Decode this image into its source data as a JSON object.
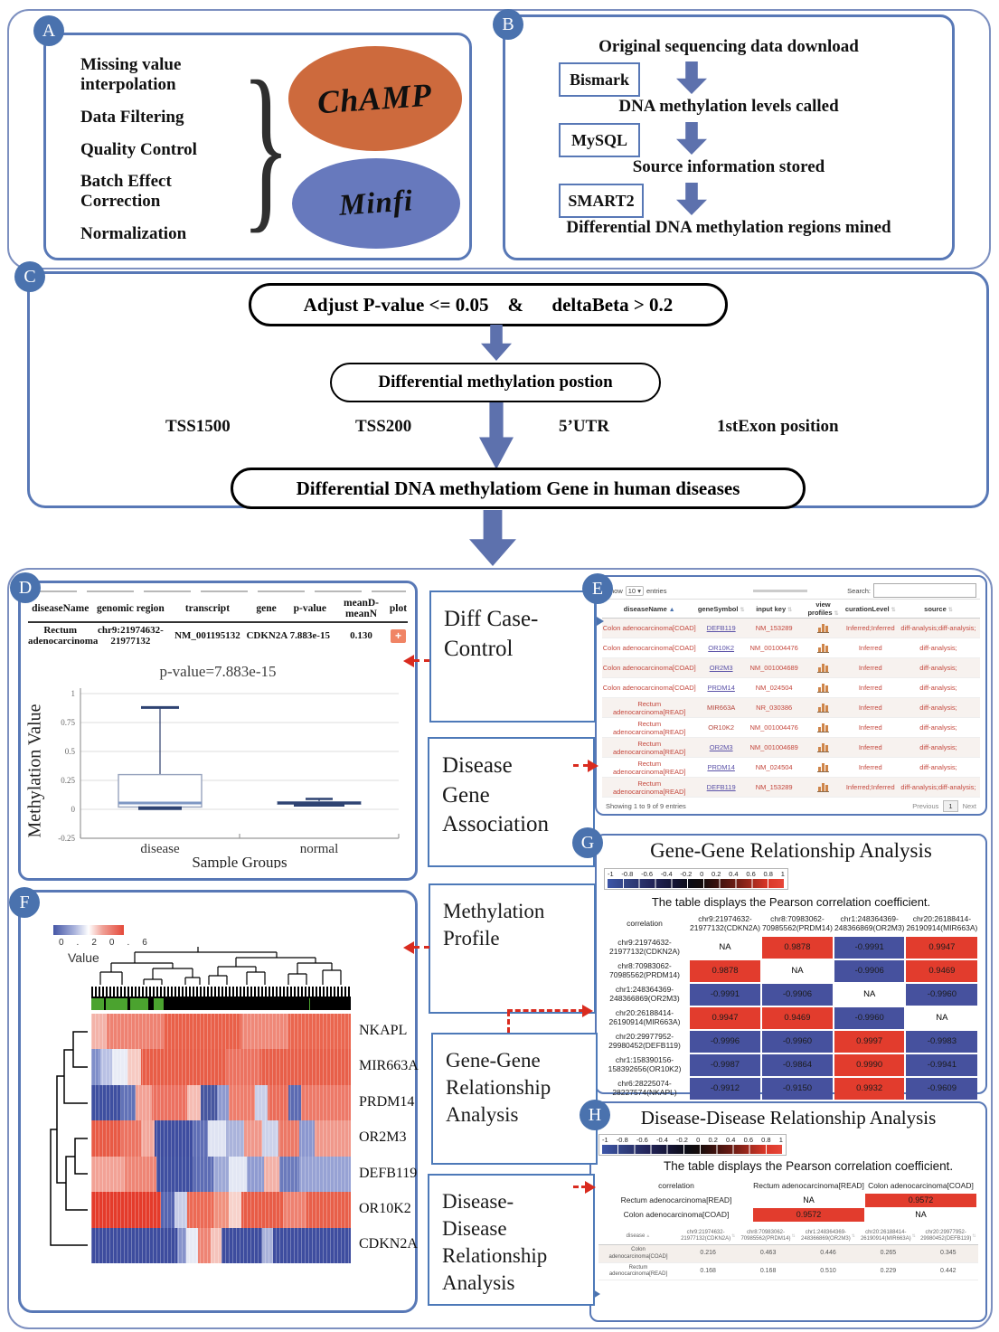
{
  "colors": {
    "panel_border": "#5878b6",
    "outer_border": "#7d90c0",
    "badge": "#4a72ae",
    "block_arrow": "#5d71ad",
    "champ": "#cd6a3d",
    "minfi": "#6779bd",
    "red_arrow": "#d92b1f",
    "corr_pos": "#e23c2d",
    "corr_neg": "#46519e",
    "table_red_text": "#c4473c",
    "link": "#5b52a8",
    "plot_button": "#f08465",
    "annotation_green": "#4ba32f"
  },
  "panelA": {
    "badge": "A",
    "items": [
      "Missing value\ninterpolation",
      "Data Filtering",
      "Quality Control",
      "Batch Effect\nCorrection",
      "Normalization"
    ],
    "tools": [
      "ChAMP",
      "Minfi"
    ]
  },
  "panelB": {
    "badge": "B",
    "step1": "Original sequencing data download",
    "tool1": "Bismark",
    "step2": "DNA methylation levels called",
    "tool2": "MySQL",
    "step3": "Source information stored",
    "tool3": "SMART2",
    "step4": "Differential DNA methylation regions mined"
  },
  "panelC": {
    "badge": "C",
    "filter": "Adjust P-value <= 0.05    &      deltaBeta > 0.2",
    "dmp": "Differential methylation postion",
    "positions": [
      "TSS1500",
      "TSS200",
      "5’UTR",
      "1stExon position"
    ],
    "result": "Differential DNA methylatiom Gene in human diseases"
  },
  "middle": {
    "boxes": [
      "Diff Case-\nControl",
      "Disease\nGene\nAssociation",
      "Methylation\nProfile",
      "Gene-Gene\nRelationship\nAnalysis",
      "Disease-\nDisease\nRelationship\nAnalysis"
    ]
  },
  "panelD": {
    "badge": "D",
    "table": {
      "headers": [
        "diseaseName",
        "genomic region",
        "transcript",
        "gene",
        "p-value",
        "meanD-meanN",
        "plot"
      ],
      "row": {
        "diseaseName": "Rectum\nadenocarcinoma",
        "genomic_region": "chr9:21974632-\n21977132",
        "transcript": "NM_001195132",
        "gene": "CDKN2A",
        "p_value": "7.883e-15",
        "meanD_meanN": "0.130",
        "plot": "+"
      }
    },
    "chart": {
      "type": "box",
      "title": "p-value=7.883e-15",
      "ylabel": "Methylation Value",
      "xlabel": "Sample Groups",
      "ylim": [
        -0.25,
        1
      ],
      "yticks": [
        1,
        0.75,
        0.5,
        0.25,
        0,
        -0.25
      ],
      "groups": [
        {
          "label": "disease",
          "low": 0.01,
          "q1": 0.02,
          "median": 0.055,
          "q3": 0.3,
          "high": 0.88
        },
        {
          "label": "normal",
          "low": 0.035,
          "q1": 0.045,
          "median": 0.055,
          "q3": 0.065,
          "high": 0.09
        }
      ]
    }
  },
  "panelE": {
    "badge": "E",
    "show_label": "Show",
    "entries_value": "10",
    "entries_suffix": "entries",
    "search_label": "Search:",
    "headers": [
      "diseaseName",
      "geneSymbol",
      "input key",
      "view profiles",
      "curationLevel",
      "source"
    ],
    "rows": [
      {
        "disease": "Colon adenocarcinoma[COAD]",
        "gene": "DEFB119",
        "link": true,
        "key": "NM_153289",
        "curation": "Inferred;Inferred",
        "source": "diff-analysis;diff-analysis;"
      },
      {
        "disease": "Colon adenocarcinoma[COAD]",
        "gene": "OR10K2",
        "link": true,
        "key": "NM_001004476",
        "curation": "Inferred",
        "source": "diff-analysis;"
      },
      {
        "disease": "Colon adenocarcinoma[COAD]",
        "gene": "OR2M3",
        "link": true,
        "key": "NM_001004689",
        "curation": "Inferred",
        "source": "diff-analysis;"
      },
      {
        "disease": "Colon adenocarcinoma[COAD]",
        "gene": "PRDM14",
        "link": true,
        "key": "NM_024504",
        "curation": "Inferred",
        "source": "diff-analysis;"
      },
      {
        "disease": "Rectum adenocarcinoma[READ]",
        "gene": "MIR663A",
        "link": false,
        "key": "NR_030386",
        "curation": "Inferred",
        "source": "diff-analysis;"
      },
      {
        "disease": "Rectum adenocarcinoma[READ]",
        "gene": "OR10K2",
        "link": false,
        "key": "NM_001004476",
        "curation": "Inferred",
        "source": "diff-analysis;"
      },
      {
        "disease": "Rectum adenocarcinoma[READ]",
        "gene": "OR2M3",
        "link": true,
        "key": "NM_001004689",
        "curation": "Inferred",
        "source": "diff-analysis;"
      },
      {
        "disease": "Rectum adenocarcinoma[READ]",
        "gene": "PRDM14",
        "link": true,
        "key": "NM_024504",
        "curation": "Inferred",
        "source": "diff-analysis;"
      },
      {
        "disease": "Rectum adenocarcinoma[READ]",
        "gene": "DEFB119",
        "link": true,
        "key": "NM_153289",
        "curation": "Inferred;Inferred",
        "source": "diff-analysis;diff-analysis;"
      }
    ],
    "footer": "Showing 1 to 9 of 9 entries",
    "prev": "Previous",
    "page": "1",
    "next": "Next"
  },
  "panelG": {
    "badge": "G",
    "title": "Gene-Gene Relationship Analysis",
    "scale_ticks": [
      "-1",
      "-0.8",
      "-0.6",
      "-0.4",
      "-0.2",
      "0",
      "0.2",
      "0.4",
      "0.6",
      "0.8",
      "1"
    ],
    "subtitle": "The table displays the Pearson correlation coefficient.",
    "corr_label": "correlation",
    "cols": [
      "chr9:21974632-\n21977132(CDKN2A)",
      "chr8:70983062-\n70985562(PRDM14)",
      "chr1:248364369-\n248366869(OR2M3)",
      "chr20:26188414-\n26190914(MIR663A)"
    ],
    "rows": [
      {
        "label": "chr9:21974632-\n21977132(CDKN2A)",
        "values": [
          "NA",
          "0.9878",
          "-0.9991",
          "0.9947"
        ]
      },
      {
        "label": "chr8:70983062-\n70985562(PRDM14)",
        "values": [
          "0.9878",
          "NA",
          "-0.9906",
          "0.9469"
        ]
      },
      {
        "label": "chr1:248364369-\n248366869(OR2M3)",
        "values": [
          "-0.9991",
          "-0.9906",
          "NA",
          "-0.9960"
        ]
      },
      {
        "label": "chr20:26188414-\n26190914(MIR663A)",
        "values": [
          "0.9947",
          "0.9469",
          "-0.9960",
          "NA"
        ]
      },
      {
        "label": "chr20:29977952-\n29980452(DEFB119)",
        "values": [
          "-0.9996",
          "-0.9960",
          "0.9997",
          "-0.9983"
        ]
      },
      {
        "label": "chr1:158390156-\n158392656(OR10K2)",
        "values": [
          "-0.9987",
          "-0.9864",
          "0.9990",
          "-0.9941"
        ]
      },
      {
        "label": "chr6:28225074-\n28227574(NKAPL)",
        "values": [
          "-0.9912",
          "-0.9150",
          "0.9932",
          "-0.9609"
        ]
      }
    ]
  },
  "panelH": {
    "badge": "H",
    "title": "Disease-Disease Relationship Analysis",
    "scale_ticks": [
      "-1",
      "-0.8",
      "-0.6",
      "-0.4",
      "-0.2",
      "0",
      "0.2",
      "0.4",
      "0.6",
      "0.8",
      "1"
    ],
    "subtitle": "The table displays the Pearson correlation coefficient.",
    "corr_label": "correlation",
    "cols": [
      "Rectum adenocarcinoma[READ]",
      "Colon adenocarcinoma[COAD]"
    ],
    "rows": [
      {
        "label": "Rectum adenocarcinoma[READ]",
        "values": [
          "NA",
          "0.9572"
        ]
      },
      {
        "label": "Colon adenocarcinoma[COAD]",
        "values": [
          "0.9572",
          "NA"
        ]
      }
    ],
    "gene_table": {
      "disease_col": "disease",
      "cols": [
        "chr9:21974632-\n21977132(CDKN2A)",
        "chr8:70983062-\n70985562(PRDM14)",
        "chr1:248364369-\n248366869(OR2M3)",
        "chr20:26188414-\n26190914(MIR663A)",
        "chr20:29977952-\n29980452(DEFB119)"
      ],
      "rows": [
        {
          "label": "Colon\nadenocarcinoma[COAD]",
          "values": [
            "0.216",
            "0.463",
            "0.446",
            "0.265",
            "0.345"
          ]
        },
        {
          "label": "Rectum\nadenocarcinoma[READ]",
          "values": [
            "0.168",
            "0.168",
            "0.510",
            "0.229",
            "0.442"
          ]
        }
      ]
    }
  },
  "panelF": {
    "badge": "F",
    "legend": {
      "ticks": [
        "0.2",
        "0.6"
      ],
      "label": "Value"
    },
    "genes": [
      "NKAPL",
      "MIR663A",
      "PRDM14",
      "OR2M3",
      "DEFB119",
      "OR10K2",
      "CDKN2A"
    ],
    "heatmap": {
      "annotation": [
        [
          0.048,
          "#4ba32f"
        ],
        [
          0.008,
          "#000000"
        ],
        [
          0.083,
          "#4ba32f"
        ],
        [
          0.012,
          "#000000"
        ],
        [
          0.07,
          "#4ba32f"
        ],
        [
          0.018,
          "#000000"
        ],
        [
          0.04,
          "#4ba32f"
        ],
        [
          0.56,
          "#000000"
        ],
        [
          0.004,
          "#4ba32f"
        ],
        [
          0.157,
          "#000000"
        ]
      ],
      "rows": [
        {
          "gene": "NKAPL",
          "segs": [
            [
              0.06,
              "#f3b3a9"
            ],
            [
              0.22,
              "#ee8272"
            ],
            [
              0.3,
              "#e96049"
            ],
            [
              0.18,
              "#ef8878"
            ],
            [
              0.24,
              "#ea664f"
            ]
          ]
        },
        {
          "gene": "MIR663A",
          "segs": [
            [
              0.035,
              "#7f8ec9"
            ],
            [
              0.045,
              "#b9c1e4"
            ],
            [
              0.06,
              "#e9ecf6"
            ],
            [
              0.05,
              "#f6cac2"
            ],
            [
              0.33,
              "#e85d47"
            ],
            [
              0.13,
              "#ec7260"
            ],
            [
              0.35,
              "#e85f49"
            ]
          ]
        },
        {
          "gene": "PRDM14",
          "segs": [
            [
              0.115,
              "#3e4fa0"
            ],
            [
              0.055,
              "#6272b7"
            ],
            [
              0.065,
              "#f2a195"
            ],
            [
              0.135,
              "#ec7060"
            ],
            [
              0.05,
              "#f5bcb3"
            ],
            [
              0.065,
              "#47569f"
            ],
            [
              0.045,
              "#8d99cf"
            ],
            [
              0.1,
              "#ee7d6c"
            ],
            [
              0.05,
              "#c9cfe9"
            ],
            [
              0.08,
              "#eb6c59"
            ],
            [
              0.05,
              "#5b6ab2"
            ],
            [
              0.19,
              "#ed7968"
            ]
          ]
        },
        {
          "gene": "OR2M3",
          "segs": [
            [
              0.115,
              "#e85a45"
            ],
            [
              0.075,
              "#ec7361"
            ],
            [
              0.055,
              "#f2a79b"
            ],
            [
              0.145,
              "#3e4da0"
            ],
            [
              0.06,
              "#5f6eb5"
            ],
            [
              0.07,
              "#dfe3f2"
            ],
            [
              0.07,
              "#aab3db"
            ],
            [
              0.07,
              "#f0978a"
            ],
            [
              0.06,
              "#ccd2ea"
            ],
            [
              0.08,
              "#ec7866"
            ],
            [
              0.06,
              "#8b97cf"
            ],
            [
              0.14,
              "#f0988b"
            ]
          ]
        },
        {
          "gene": "DEFB119",
          "segs": [
            [
              0.13,
              "#f2a296"
            ],
            [
              0.12,
              "#ee8575"
            ],
            [
              0.145,
              "#3f4fa1"
            ],
            [
              0.075,
              "#5d6cb4"
            ],
            [
              0.06,
              "#9da8d6"
            ],
            [
              0.07,
              "#e3e7f4"
            ],
            [
              0.065,
              "#8f9bd1"
            ],
            [
              0.06,
              "#f3b1a7"
            ],
            [
              0.075,
              "#6b7abc"
            ],
            [
              0.2,
              "#97a2d4"
            ]
          ]
        },
        {
          "gene": "OR10K2",
          "segs": [
            [
              0.27,
              "#e43b2b"
            ],
            [
              0.05,
              "#5564b0"
            ],
            [
              0.05,
              "#c7cde8"
            ],
            [
              0.1,
              "#ec6a55"
            ],
            [
              0.06,
              "#f0917e"
            ],
            [
              0.05,
              "#f7d2cb"
            ],
            [
              0.16,
              "#e85c46"
            ],
            [
              0.09,
              "#ee8170"
            ],
            [
              0.17,
              "#e85f49"
            ]
          ]
        },
        {
          "gene": "CDKN2A",
          "segs": [
            [
              0.33,
              "#3d4c9e"
            ],
            [
              0.035,
              "#8793cb"
            ],
            [
              0.045,
              "#e7eaf5"
            ],
            [
              0.05,
              "#ee8474"
            ],
            [
              0.04,
              "#f5c3bb"
            ],
            [
              0.16,
              "#3d4c9e"
            ],
            [
              0.04,
              "#a9b2da"
            ],
            [
              0.3,
              "#3e4d9f"
            ]
          ]
        }
      ]
    }
  }
}
